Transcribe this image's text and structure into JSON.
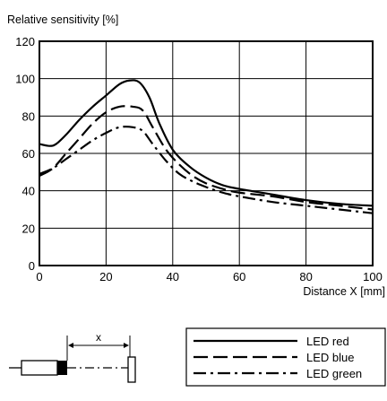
{
  "chart_data": {
    "type": "line",
    "ylabel": "Relative sensitivity [%]",
    "xlabel": "Distance X [mm]",
    "xlim": [
      0,
      100
    ],
    "ylim": [
      0,
      120
    ],
    "xticks": [
      0,
      20,
      40,
      60,
      80,
      100
    ],
    "yticks": [
      0,
      20,
      40,
      60,
      80,
      100,
      120
    ],
    "grid": true,
    "series": [
      {
        "name": "LED red",
        "dash": "solid",
        "x": [
          0,
          3,
          5,
          8,
          12,
          16,
          20,
          24,
          27,
          30,
          33,
          36,
          40,
          45,
          50,
          55,
          60,
          70,
          80,
          90,
          100
        ],
        "y": [
          65,
          64,
          65,
          70,
          78,
          85,
          91,
          97,
          99,
          98,
          90,
          76,
          62,
          53,
          47,
          43,
          41,
          38,
          35,
          33,
          32
        ]
      },
      {
        "name": "LED blue",
        "dash": "long-dash",
        "x": [
          0,
          4,
          8,
          12,
          16,
          20,
          24,
          28,
          31,
          34,
          38,
          42,
          46,
          50,
          55,
          60,
          70,
          80,
          90,
          100
        ],
        "y": [
          48,
          52,
          60,
          68,
          76,
          82,
          85,
          85,
          83,
          74,
          62,
          54,
          48,
          44,
          41,
          39,
          37,
          34,
          32,
          30
        ]
      },
      {
        "name": "LED green",
        "dash": "dash-dot",
        "x": [
          0,
          4,
          8,
          12,
          16,
          20,
          24,
          28,
          31,
          34,
          38,
          42,
          46,
          50,
          55,
          60,
          70,
          80,
          90,
          100
        ],
        "y": [
          49,
          52,
          57,
          62,
          67,
          71,
          74,
          74,
          72,
          65,
          56,
          49,
          45,
          42,
          39,
          37,
          34,
          32,
          30,
          28
        ]
      }
    ]
  },
  "sketch": {
    "x_label": "x"
  }
}
